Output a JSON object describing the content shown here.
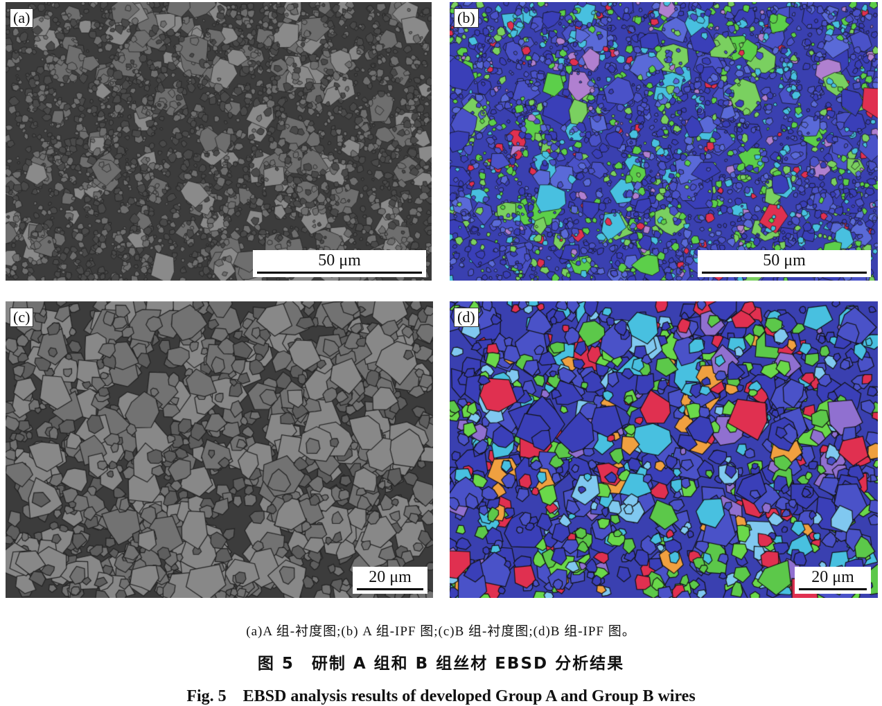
{
  "panels": [
    {
      "label": "(a)",
      "scale_bar": "50 μm",
      "type": "band-contrast",
      "colors": [
        "#4a4a4a",
        "#6e6e6e",
        "#8a8a8a"
      ]
    },
    {
      "label": "(b)",
      "scale_bar": "50 μm",
      "type": "IPF",
      "colors": [
        "#3a3fb8",
        "#4a52c8",
        "#5a6ad8",
        "#5ccf4a",
        "#48c0e0",
        "#7ad060",
        "#e03050",
        "#b080d0"
      ]
    },
    {
      "label": "(c)",
      "scale_bar": "20 μm",
      "type": "band-contrast",
      "colors": [
        "#5e5e5e",
        "#727272",
        "#888888"
      ]
    },
    {
      "label": "(d)",
      "scale_bar": "20 μm",
      "type": "IPF",
      "colors": [
        "#3a3fb8",
        "#4a52c8",
        "#5cc84a",
        "#6ad84a",
        "#48c0e0",
        "#80c8f0",
        "#e03050",
        "#f0a040",
        "#9070d0"
      ]
    }
  ],
  "caption": {
    "subcaptions": "(a)A 组-衬度图;(b) A 组-IPF 图;(c)B 组-衬度图;(d)B 组-IPF 图。",
    "title_cn": "图 5　研制 A 组和 B 组丝材 EBSD 分析结果",
    "title_en": "Fig. 5　EBSD analysis results of developed Group A and Group B wires"
  }
}
